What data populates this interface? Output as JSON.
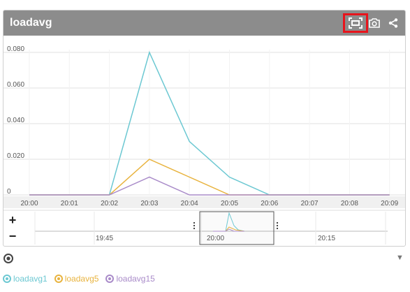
{
  "panel": {
    "title": "loadavg"
  },
  "toolbar": {
    "fullscreen_icon": "fullscreen-icon",
    "camera_icon": "camera-icon",
    "share_icon": "share-icon"
  },
  "navigator": {
    "zoom_in_label": "+",
    "zoom_out_label": "−",
    "time_labels": [
      "19:45",
      "20:00",
      "20:15"
    ]
  },
  "legend": [
    {
      "label": "loadavg1",
      "color": "#6cc8d2"
    },
    {
      "label": "loadavg5",
      "color": "#e8b33e"
    },
    {
      "label": "loadavg15",
      "color": "#a98bc9"
    }
  ],
  "chart_data": {
    "type": "line",
    "x": [
      "20:00",
      "20:01",
      "20:02",
      "20:03",
      "20:04",
      "20:05",
      "20:06",
      "20:07",
      "20:08",
      "20:09"
    ],
    "ylim": [
      0,
      0.08
    ],
    "yticks": [
      "0",
      "0.020",
      "0.040",
      "0.060",
      "0.080"
    ],
    "grid": true,
    "series": [
      {
        "name": "loadavg1",
        "values": [
          0,
          0,
          0,
          0.08,
          0.03,
          0.01,
          0,
          0,
          0,
          0
        ]
      },
      {
        "name": "loadavg5",
        "values": [
          0,
          0,
          0,
          0.02,
          0.01,
          0,
          0,
          0,
          0,
          0
        ]
      },
      {
        "name": "loadavg15",
        "values": [
          0,
          0,
          0,
          0.01,
          0,
          0,
          0,
          0,
          0,
          0
        ]
      }
    ]
  }
}
